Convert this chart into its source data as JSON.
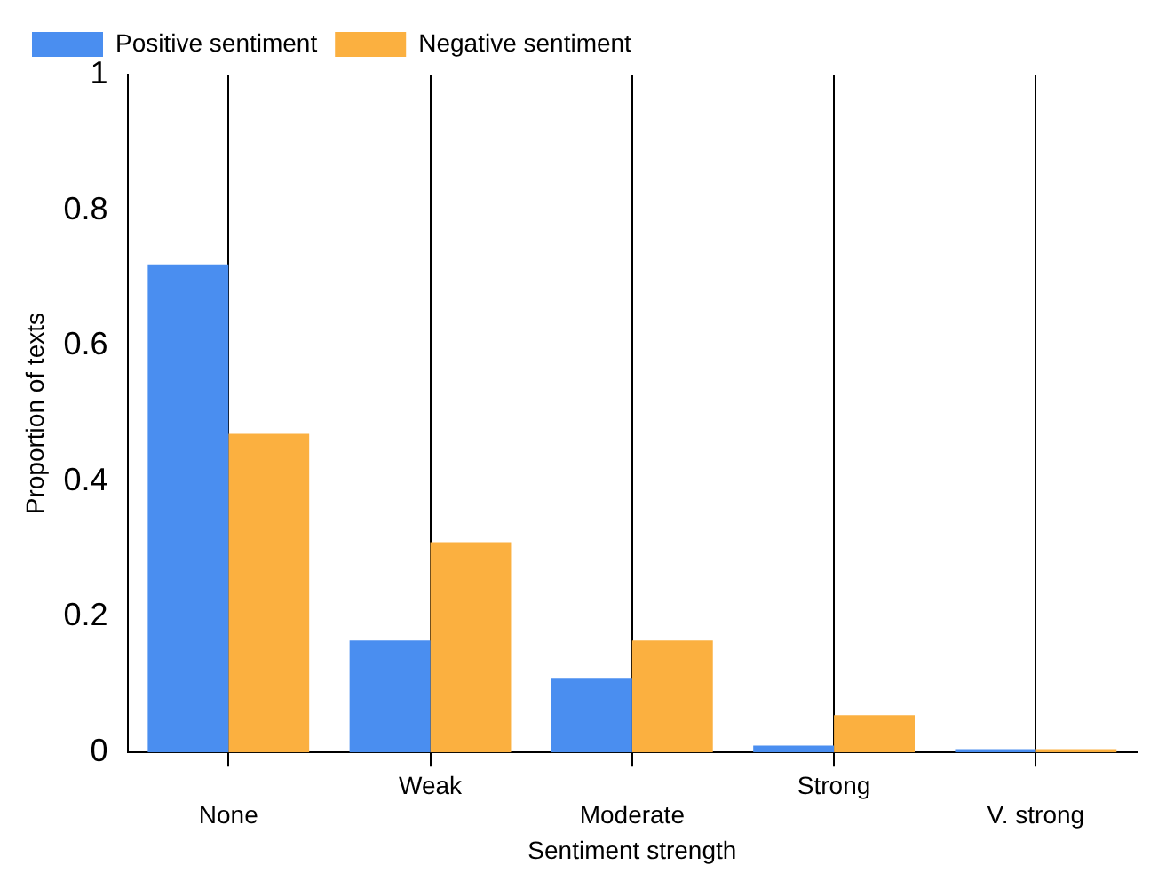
{
  "chart_data": {
    "type": "bar",
    "xlabel": "Sentiment strength",
    "ylabel": "Proportion of texts",
    "categories": [
      "None",
      "Weak",
      "Moderate",
      "Strong",
      "V. strong"
    ],
    "series": [
      {
        "name": "Positive sentiment",
        "color": "#4a8ef0",
        "values": [
          0.72,
          0.165,
          0.11,
          0.01,
          0.005
        ]
      },
      {
        "name": "Negative sentiment",
        "color": "#fbb040",
        "values": [
          0.47,
          0.31,
          0.165,
          0.055,
          0.005
        ]
      }
    ],
    "ylim": [
      0,
      1
    ],
    "yticks": [
      0,
      0.2,
      0.4,
      0.6,
      0.8,
      1
    ],
    "grid": "x",
    "legend": "top left"
  }
}
